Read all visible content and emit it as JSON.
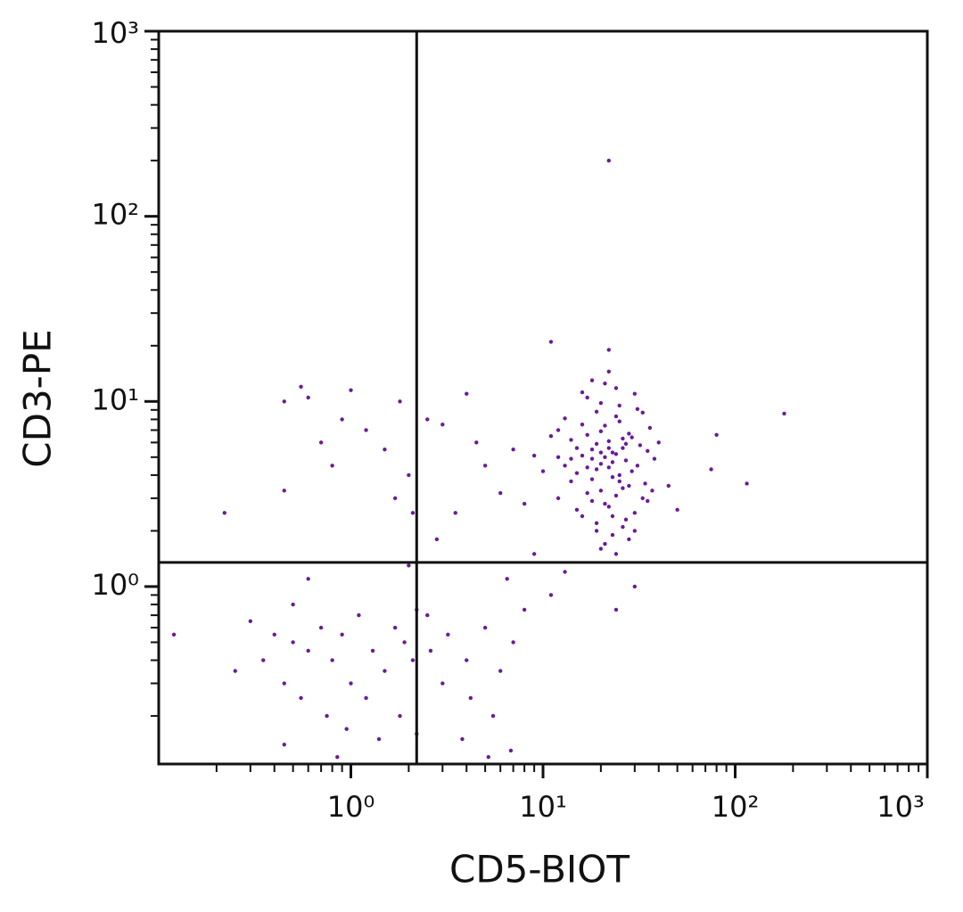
{
  "chart_data": {
    "type": "scatter",
    "x_label": "CD5-BIOT",
    "y_label": "CD3-PE",
    "log_x": true,
    "log_y": true,
    "color": "#6a1b9a",
    "xlim": [
      0.1,
      1000
    ],
    "ylim": [
      0.11,
      1000
    ],
    "xticks": [
      {
        "value": 1,
        "label": "10⁰"
      },
      {
        "value": 10,
        "label": "10¹"
      },
      {
        "value": 100,
        "label": "10²"
      },
      {
        "value": 1000,
        "label": "10³"
      }
    ],
    "yticks": [
      {
        "value": 1,
        "label": "10⁰"
      },
      {
        "value": 10,
        "label": "10¹"
      },
      {
        "value": 100,
        "label": "10²"
      },
      {
        "value": 1000,
        "label": "10³"
      }
    ],
    "gates": {
      "x": 2.2,
      "y": 1.35
    },
    "x": [
      12,
      14,
      15,
      16,
      17,
      18,
      19,
      20,
      21,
      22,
      23,
      24,
      25,
      26,
      27,
      28,
      30,
      32,
      34,
      36,
      13,
      15,
      17,
      19,
      21,
      23,
      25,
      27,
      29,
      31,
      18,
      20,
      22,
      24,
      16,
      14,
      26,
      28,
      19,
      21,
      23,
      25,
      17,
      20,
      22,
      24,
      26,
      12,
      11,
      13,
      38,
      40,
      35,
      33,
      30,
      18,
      22,
      16,
      20,
      24,
      19,
      21,
      23,
      18,
      20,
      22,
      17,
      25,
      27,
      15,
      14,
      29,
      31,
      33,
      35,
      12,
      10,
      9,
      37,
      19,
      21,
      23,
      26,
      28,
      30,
      16,
      18,
      24,
      20,
      22,
      22,
      11,
      80,
      115,
      180,
      75,
      45,
      50,
      4,
      3,
      2.5,
      6,
      5,
      7,
      8,
      4.5,
      3.5,
      2.8,
      6.5,
      9,
      8,
      5,
      4,
      3,
      6,
      7,
      5.5,
      4.2,
      3.2,
      2.5,
      2.6,
      3.8,
      6.8,
      5.2,
      13,
      11,
      24,
      30,
      0.55,
      0.45,
      0.6,
      1,
      0.9,
      1.2,
      0.8,
      0.7,
      0.45,
      0.22,
      1.5,
      1.8,
      2,
      1.7,
      2.1,
      2,
      0.6,
      0.5,
      0.4,
      0.3,
      0.25,
      0.35,
      0.45,
      0.5,
      0.6,
      0.7,
      0.8,
      0.9,
      1,
      1.1,
      1.3,
      1.5,
      1.7,
      1.9,
      2.1,
      2.2,
      0.55,
      0.75,
      0.95,
      1.4,
      0.45,
      0.12,
      1.2,
      1.8,
      2.2,
      0.85
    ],
    "values": [
      5,
      6.2,
      4.1,
      7.5,
      3.2,
      5.5,
      8.8,
      4.6,
      2.8,
      6.1,
      3.9,
      5.2,
      9.5,
      3.4,
      4.8,
      6.7,
      2.5,
      5.8,
      3.6,
      7.2,
      8.1,
      2.6,
      10.5,
      2.2,
      12.5,
      1.9,
      7.8,
      2.3,
      4.2,
      9.1,
      3.8,
      6.9,
      4.4,
      3.1,
      5.1,
      3.7,
      5.6,
      3.5,
      5.9,
      7.4,
      5.3,
      4,
      6.6,
      3.3,
      2.7,
      8.3,
      6.3,
      3,
      6.5,
      4.5,
      4.9,
      6,
      2.9,
      8.7,
      11,
      13,
      14.5,
      11.2,
      9.8,
      11.8,
      4.3,
      5,
      4.7,
      4.9,
      5.3,
      5.6,
      4.4,
      3.7,
      5.9,
      5.6,
      4.9,
      6.4,
      4.5,
      3,
      5.4,
      7,
      4.2,
      5.1,
      3.3,
      2,
      1.7,
      2.4,
      2.1,
      1.8,
      2,
      2.4,
      2.9,
      1.5,
      1.6,
      19,
      200,
      21,
      6.6,
      3.6,
      8.6,
      4.3,
      3.5,
      2.6,
      11,
      7.5,
      8,
      3.2,
      4.5,
      5.5,
      2.8,
      6,
      2.5,
      1.8,
      1.1,
      1.5,
      0.75,
      0.6,
      0.4,
      0.3,
      0.35,
      0.5,
      0.2,
      0.25,
      0.55,
      0.7,
      0.45,
      0.15,
      0.13,
      0.12,
      1.2,
      0.9,
      0.75,
      1,
      12,
      10,
      10.5,
      11.5,
      8,
      7,
      4.5,
      6,
      3.3,
      2.5,
      5.5,
      10,
      4,
      3,
      2.5,
      1.3,
      1.1,
      0.8,
      0.55,
      0.65,
      0.35,
      0.4,
      0.3,
      0.5,
      0.45,
      0.6,
      0.4,
      0.55,
      0.3,
      0.7,
      0.45,
      0.35,
      0.6,
      0.5,
      0.4,
      0.75,
      0.25,
      0.2,
      0.17,
      0.15,
      0.14,
      0.55,
      0.25,
      0.2,
      0.16,
      0.12
    ]
  }
}
